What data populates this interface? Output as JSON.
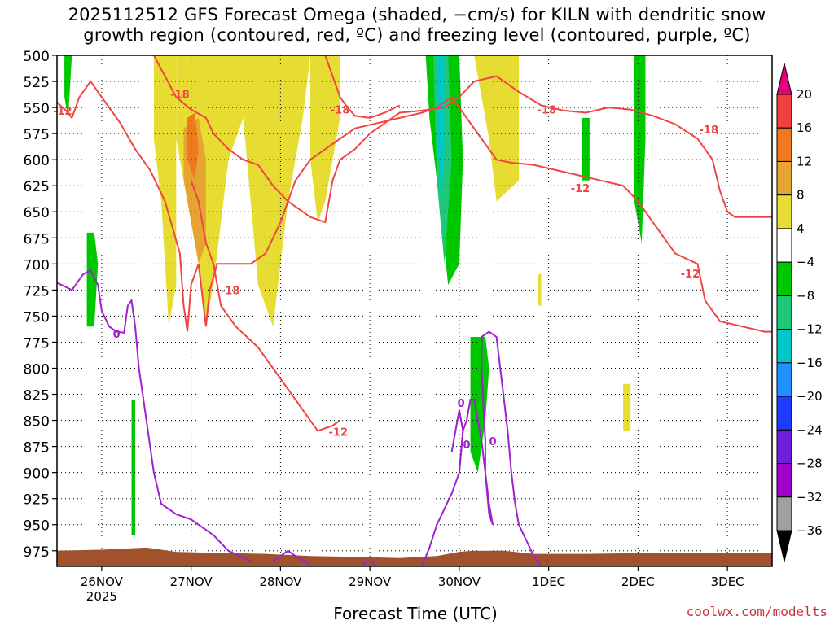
{
  "title_line1": "2025112512 GFS Forecast Omega (shaded, −cm/s) for KILN with dendritic snow",
  "title_line2": "growth region (contoured, red, ºC) and freezing level (contoured, purple, ºC)",
  "credit": "coolwx.com/modelts",
  "chart_data": {
    "type": "heatmap",
    "title": "2025112512 GFS Forecast Omega (shaded, −cm/s) for KILN with dendritic snow growth region (contoured, red, ºC) and freezing level (contoured, purple, ºC)",
    "xlabel": "Forecast Time (UTC)",
    "ylabel": "",
    "x_range_hours": [
      -12,
      180
    ],
    "x_ticks": [
      {
        "label": "26NOV",
        "hour": 0,
        "sub": "2025"
      },
      {
        "label": "27NOV",
        "hour": 24,
        "sub": ""
      },
      {
        "label": "28NOV",
        "hour": 48,
        "sub": ""
      },
      {
        "label": "29NOV",
        "hour": 72,
        "sub": ""
      },
      {
        "label": "30NOV",
        "hour": 96,
        "sub": ""
      },
      {
        "label": "1DEC",
        "hour": 120,
        "sub": ""
      },
      {
        "label": "2DEC",
        "hour": 144,
        "sub": ""
      },
      {
        "label": "3DEC",
        "hour": 168,
        "sub": ""
      }
    ],
    "y_pressure_levels_hpa": [
      500,
      525,
      550,
      575,
      600,
      625,
      650,
      675,
      700,
      725,
      750,
      775,
      800,
      825,
      850,
      875,
      900,
      925,
      950,
      975
    ],
    "y_range_hpa": [
      500,
      990
    ],
    "grid": true,
    "colorbar": {
      "tick_labels": [
        "20",
        "16",
        "12",
        "8",
        "4",
        "−4",
        "−8",
        "−12",
        "−16",
        "−20",
        "−24",
        "−28",
        "−32",
        "−36"
      ],
      "colors": [
        "#e6007f",
        "#f04040",
        "#f0781e",
        "#e6a532",
        "#e6dc32",
        "#ffffff",
        "#00c800",
        "#1ec878",
        "#00c8c8",
        "#1e90ff",
        "#1e3cff",
        "#6e1edc",
        "#a000c8",
        "#a0a0a0",
        "#000000"
      ]
    },
    "red_contour_color": "#f04545",
    "purple_contour_color": "#a020d0",
    "terrain_color": "#a0522d",
    "contour_labels": [
      {
        "text": "-12",
        "x": -10.5,
        "p": 553
      },
      {
        "text": "-18",
        "x": 21,
        "p": 537
      },
      {
        "text": "-18",
        "x": 64,
        "p": 552
      },
      {
        "text": "-18",
        "x": 34.5,
        "p": 725
      },
      {
        "text": "-12",
        "x": 63.5,
        "p": 861
      },
      {
        "text": "-18",
        "x": 119.5,
        "p": 552
      },
      {
        "text": "-12",
        "x": 128.5,
        "p": 627
      },
      {
        "text": "-18",
        "x": 163,
        "p": 571
      },
      {
        "text": "-12",
        "x": 158,
        "p": 709
      },
      {
        "text": "0",
        "x": 4,
        "p": 767
      },
      {
        "text": "0",
        "x": 96.5,
        "p": 833
      },
      {
        "text": "0",
        "x": 98,
        "p": 873
      },
      {
        "text": "0",
        "x": 105,
        "p": 870
      }
    ],
    "shaded_regions": [
      {
        "name": "omega-lift-4-8",
        "color": "#e6dc32",
        "points": [
          [
            14,
            500
          ],
          [
            20,
            500
          ],
          [
            20,
            720
          ],
          [
            18,
            760
          ],
          [
            16,
            640
          ],
          [
            14,
            580
          ]
        ]
      },
      {
        "name": "omega-lift-4-8",
        "color": "#e6dc32",
        "points": [
          [
            20,
            500
          ],
          [
            38,
            500
          ],
          [
            38,
            560
          ],
          [
            34,
            600
          ],
          [
            30,
            720
          ],
          [
            28,
            760
          ],
          [
            26,
            700
          ],
          [
            24,
            640
          ],
          [
            22,
            620
          ],
          [
            20,
            580
          ]
        ]
      },
      {
        "name": "omega-lift-4-8",
        "color": "#e6dc32",
        "points": [
          [
            38,
            500
          ],
          [
            56,
            500
          ],
          [
            54,
            560
          ],
          [
            50,
            640
          ],
          [
            46,
            760
          ],
          [
            44,
            740
          ],
          [
            42,
            720
          ],
          [
            40,
            640
          ],
          [
            38,
            560
          ]
        ]
      },
      {
        "name": "omega-lift-4-8",
        "color": "#e6dc32",
        "points": [
          [
            56,
            500
          ],
          [
            64,
            500
          ],
          [
            64,
            560
          ],
          [
            60,
            640
          ],
          [
            58,
            660
          ],
          [
            56,
            600
          ]
        ]
      },
      {
        "name": "omega-lift-4-8",
        "color": "#e6dc32",
        "points": [
          [
            100,
            500
          ],
          [
            112,
            500
          ],
          [
            112,
            620
          ],
          [
            106,
            640
          ],
          [
            104,
            580
          ],
          [
            102,
            540
          ]
        ]
      },
      {
        "name": "omega-lift-4-8",
        "color": "#e6dc32",
        "points": [
          [
            117,
            710
          ],
          [
            118,
            710
          ],
          [
            118,
            740
          ],
          [
            117,
            740
          ]
        ]
      },
      {
        "name": "omega-lift-4-8",
        "color": "#e6dc32",
        "points": [
          [
            140,
            815
          ],
          [
            142,
            815
          ],
          [
            142,
            860
          ],
          [
            140,
            860
          ]
        ]
      },
      {
        "name": "omega-lift-8-12",
        "color": "#e6a532",
        "points": [
          [
            22,
            570
          ],
          [
            26,
            560
          ],
          [
            28,
            600
          ],
          [
            28,
            680
          ],
          [
            26,
            700
          ],
          [
            24,
            660
          ],
          [
            22,
            620
          ]
        ]
      },
      {
        "name": "omega-lift-12-16",
        "color": "#f0781e",
        "points": [
          [
            23,
            560
          ],
          [
            25,
            555
          ],
          [
            26,
            590
          ],
          [
            25,
            620
          ],
          [
            23,
            600
          ]
        ]
      },
      {
        "name": "omega-sink-4-8",
        "color": "#00c800",
        "points": [
          [
            -10,
            500
          ],
          [
            -8,
            500
          ],
          [
            -9,
            560
          ],
          [
            -10,
            540
          ]
        ]
      },
      {
        "name": "omega-sink-4-8",
        "color": "#00c800",
        "points": [
          [
            -4,
            670
          ],
          [
            -2,
            670
          ],
          [
            -1,
            700
          ],
          [
            -2,
            760
          ],
          [
            -4,
            760
          ]
        ]
      },
      {
        "name": "omega-sink-4-8",
        "color": "#00c800",
        "points": [
          [
            8,
            830
          ],
          [
            9,
            830
          ],
          [
            9,
            960
          ],
          [
            8,
            960
          ]
        ]
      },
      {
        "name": "omega-sink-4-8",
        "color": "#00c800",
        "points": [
          [
            87,
            500
          ],
          [
            96,
            500
          ],
          [
            97,
            600
          ],
          [
            96,
            700
          ],
          [
            93,
            720
          ],
          [
            91,
            650
          ],
          [
            88,
            560
          ]
        ]
      },
      {
        "name": "omega-sink-4-8",
        "color": "#00c800",
        "points": [
          [
            99,
            770
          ],
          [
            103,
            770
          ],
          [
            104,
            800
          ],
          [
            103,
            850
          ],
          [
            101,
            900
          ],
          [
            99,
            880
          ]
        ]
      },
      {
        "name": "omega-sink-4-8",
        "color": "#00c800",
        "points": [
          [
            143,
            500
          ],
          [
            146,
            500
          ],
          [
            146,
            580
          ],
          [
            145,
            680
          ],
          [
            143,
            640
          ]
        ]
      },
      {
        "name": "omega-sink-4-8",
        "color": "#00c800",
        "points": [
          [
            129,
            560
          ],
          [
            131,
            560
          ],
          [
            131,
            620
          ],
          [
            129,
            620
          ]
        ]
      },
      {
        "name": "omega-sink-8-12",
        "color": "#1ec878",
        "points": [
          [
            89,
            500
          ],
          [
            93,
            500
          ],
          [
            94,
            600
          ],
          [
            92,
            700
          ],
          [
            90,
            620
          ]
        ]
      },
      {
        "name": "omega-sink-12-16",
        "color": "#00c8c8",
        "points": [
          [
            90,
            500
          ],
          [
            92,
            500
          ],
          [
            92,
            600
          ],
          [
            91,
            640
          ],
          [
            90,
            560
          ]
        ]
      }
    ]
  }
}
